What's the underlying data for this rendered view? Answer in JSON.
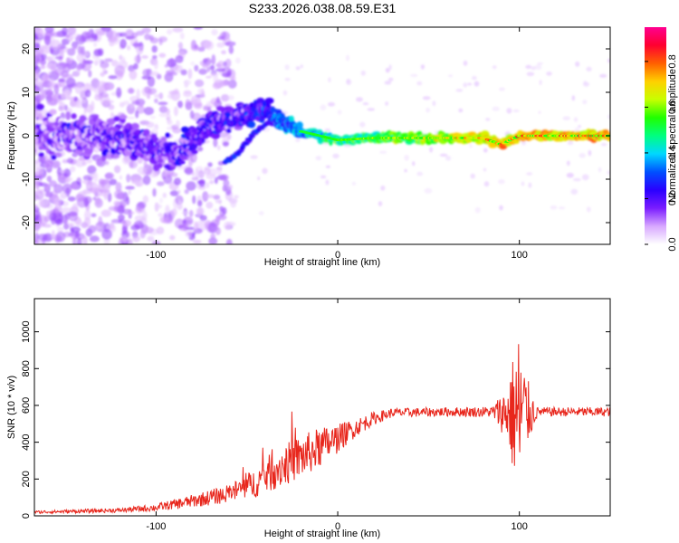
{
  "title": "S233.2026.038.08.59.E31",
  "chart_data": [
    {
      "type": "heatmap",
      "xlabel": "Height of straight line (km)",
      "ylabel": "Frequency (Hz)",
      "xlim": [
        -167,
        150
      ],
      "ylim": [
        -25,
        25
      ],
      "xticks": [
        -100,
        0,
        100
      ],
      "yticks": [
        -20,
        -10,
        0,
        10,
        20
      ],
      "grid": false,
      "colorbar": {
        "label": "Normalized spectral amplitude",
        "range": [
          0.0,
          0.95
        ],
        "ticks": [
          0.0,
          0.2,
          0.4,
          0.6,
          0.8
        ],
        "colors": [
          "#ffffff",
          "#d8a8ff",
          "#7a1cff",
          "#2a00ff",
          "#0050ff",
          "#00d8ff",
          "#00ff80",
          "#20ff00",
          "#c8ff00",
          "#ffd000",
          "#ff6000",
          "#ff0030",
          "#ff0090"
        ]
      },
      "ridge": [
        {
          "x": -160,
          "f": 0
        },
        {
          "x": -120,
          "f": 0
        },
        {
          "x": -100,
          "f": -3
        },
        {
          "x": -90,
          "f": -5
        },
        {
          "x": -80,
          "f": -1
        },
        {
          "x": -70,
          "f": 3
        },
        {
          "x": -60,
          "f": 4
        },
        {
          "x": -50,
          "f": 5
        },
        {
          "x": -40,
          "f": 6
        },
        {
          "x": -30,
          "f": 3
        },
        {
          "x": -20,
          "f": 1
        },
        {
          "x": -10,
          "f": 0
        },
        {
          "x": 0,
          "f": -1
        },
        {
          "x": 20,
          "f": -0.5
        },
        {
          "x": 50,
          "f": -0.5
        },
        {
          "x": 80,
          "f": -0.5
        },
        {
          "x": 90,
          "f": -2
        },
        {
          "x": 95,
          "f": -1
        },
        {
          "x": 100,
          "f": 0
        },
        {
          "x": 150,
          "f": 0
        }
      ],
      "secondary_ridge": [
        {
          "x": -62,
          "f": -6
        },
        {
          "x": -55,
          "f": -4
        },
        {
          "x": -45,
          "f": 1
        },
        {
          "x": -38,
          "f": 3
        }
      ]
    },
    {
      "type": "line",
      "xlabel": "Height of straight line (km)",
      "ylabel": "SNR (10 * v/v)",
      "xlim": [
        -167,
        150
      ],
      "ylim": [
        0,
        1180
      ],
      "xticks": [
        -100,
        0,
        100
      ],
      "yticks": [
        0,
        200,
        400,
        600,
        800,
        1000
      ],
      "grid": false,
      "series": [
        {
          "color": "#e8261c",
          "envelope": [
            {
              "x": -167,
              "mean": 20,
              "noise": 8
            },
            {
              "x": -120,
              "mean": 30,
              "noise": 12
            },
            {
              "x": -100,
              "mean": 45,
              "noise": 20
            },
            {
              "x": -80,
              "mean": 80,
              "noise": 35
            },
            {
              "x": -60,
              "mean": 120,
              "noise": 50
            },
            {
              "x": -45,
              "mean": 180,
              "noise": 80
            },
            {
              "x": -35,
              "mean": 250,
              "noise": 110
            },
            {
              "x": -20,
              "mean": 320,
              "noise": 120
            },
            {
              "x": -10,
              "mean": 370,
              "noise": 110
            },
            {
              "x": 0,
              "mean": 420,
              "noise": 80
            },
            {
              "x": 10,
              "mean": 480,
              "noise": 50
            },
            {
              "x": 20,
              "mean": 530,
              "noise": 35
            },
            {
              "x": 30,
              "mean": 560,
              "noise": 25
            },
            {
              "x": 60,
              "mean": 565,
              "noise": 25
            },
            {
              "x": 85,
              "mean": 565,
              "noise": 30
            },
            {
              "x": 93,
              "mean": 560,
              "noise": 150
            },
            {
              "x": 100,
              "mean": 540,
              "noise": 500
            },
            {
              "x": 104,
              "mean": 560,
              "noise": 200
            },
            {
              "x": 110,
              "mean": 565,
              "noise": 25
            },
            {
              "x": 150,
              "mean": 565,
              "noise": 25
            }
          ]
        }
      ]
    }
  ]
}
